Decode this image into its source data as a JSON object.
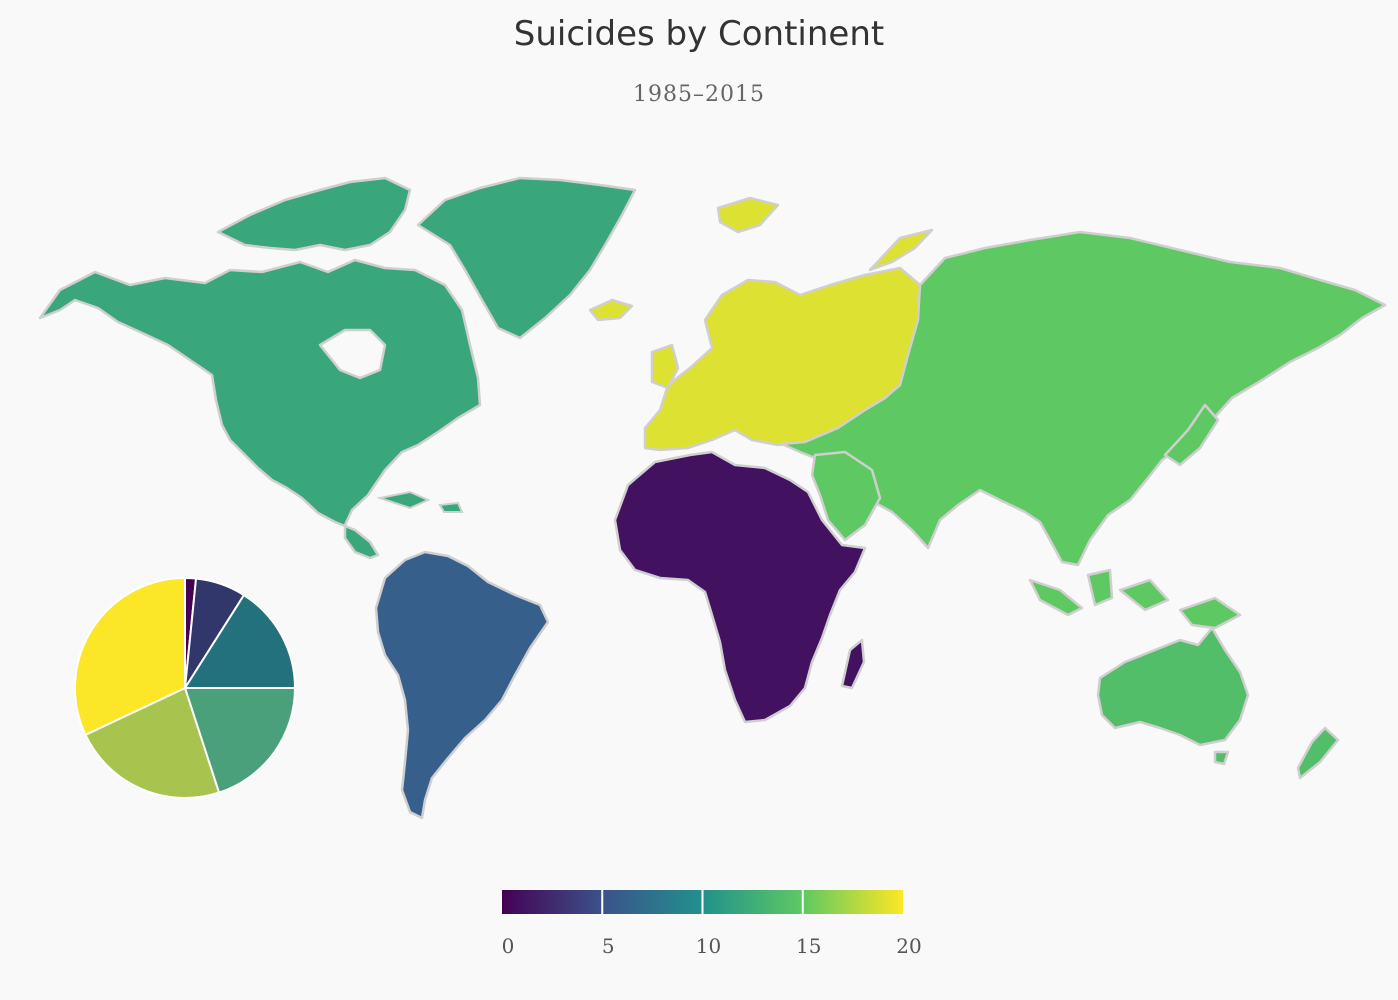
{
  "title": "Suicides by Continent",
  "subtitle": "1985–2015",
  "colors": {
    "background": "#f9f9f9",
    "border": "#cfcfcf",
    "ramp": [
      "#440154",
      "#3b528b",
      "#21918c",
      "#5ec962",
      "#fde725"
    ]
  },
  "chart_data": {
    "type": "choropleth-map",
    "regions": [
      {
        "name": "Africa",
        "value": 1
      },
      {
        "name": "South America",
        "value": 6
      },
      {
        "name": "North America",
        "value": 12
      },
      {
        "name": "Oceania",
        "value": 14
      },
      {
        "name": "Asia",
        "value": 15
      },
      {
        "name": "Europe",
        "value": 19
      }
    ],
    "legend": {
      "range": [
        0,
        20
      ],
      "ticks": [
        0,
        5,
        10,
        15,
        20
      ],
      "tick_labels": [
        "0",
        "5",
        "10",
        "15",
        "20"
      ]
    },
    "inset_pie": {
      "type": "pie",
      "slices": [
        {
          "value": 1.6,
          "color": "#440154"
        },
        {
          "value": 7.4,
          "color": "#31366b"
        },
        {
          "value": 16.0,
          "color": "#23717c"
        },
        {
          "value": 20.0,
          "color": "#4aa07a"
        },
        {
          "value": 23.0,
          "color": "#a7c44e"
        },
        {
          "value": 32.0,
          "color": "#fbe727"
        }
      ]
    }
  }
}
